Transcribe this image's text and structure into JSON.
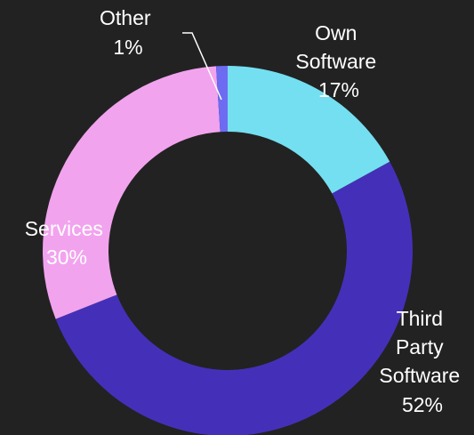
{
  "chart_data": {
    "type": "pie",
    "variant": "donut",
    "title": "",
    "slices": [
      {
        "label_lines": [
          "Own",
          "Software"
        ],
        "percent_label": "17%",
        "value": 17,
        "color": "#74DFF0"
      },
      {
        "label_lines": [
          "Third",
          "Party",
          "Software"
        ],
        "percent_label": "52%",
        "value": 52,
        "color": "#4430B8"
      },
      {
        "label_lines": [
          "Services"
        ],
        "percent_label": "30%",
        "value": 30,
        "color": "#F2A3EE"
      },
      {
        "label_lines": [
          "Other"
        ],
        "percent_label": "1%",
        "value": 1,
        "color": "#6D6BF2"
      }
    ],
    "start_angle_deg": 0,
    "direction": "clockwise",
    "background_color": "#222222",
    "legend": "none"
  }
}
